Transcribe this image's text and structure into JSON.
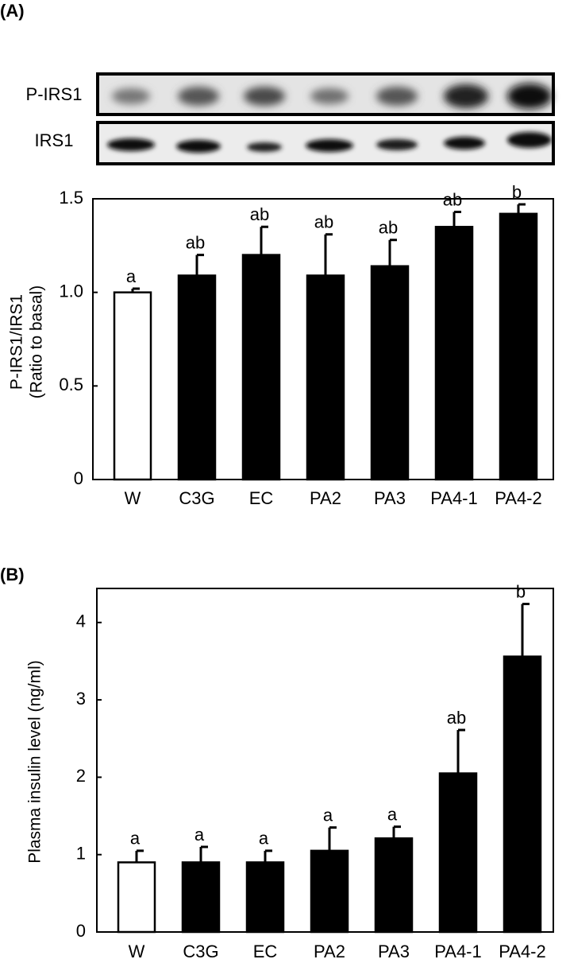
{
  "chart_data": [
    {
      "type": "bar",
      "panel_label": "(A)",
      "blot_labels": [
        "P-IRS1",
        "IRS1"
      ],
      "ylabel": [
        "P-IRS1/IRS1",
        "(Ratio to basal)"
      ],
      "categories": [
        "W",
        "C3G",
        "EC",
        "PA2",
        "PA3",
        "PA4-1",
        "PA4-2"
      ],
      "values": [
        1.0,
        1.09,
        1.2,
        1.09,
        1.14,
        1.35,
        1.42
      ],
      "errors": [
        0.02,
        0.11,
        0.15,
        0.22,
        0.14,
        0.08,
        0.05
      ],
      "significance": [
        "a",
        "ab",
        "ab",
        "ab",
        "ab",
        "ab",
        "b"
      ],
      "colors": [
        "#ffffff",
        "#000000",
        "#000000",
        "#000000",
        "#000000",
        "#000000",
        "#000000"
      ],
      "edge_color": "#000000",
      "ylim": [
        0,
        1.5
      ],
      "yticks": [
        0,
        0.5,
        {
          "value": 1,
          "label": "1.0"
        },
        1.5
      ]
    },
    {
      "type": "bar",
      "panel_label": "(B)",
      "ylabel": "Plasma insulin level (ng/ml)",
      "categories": [
        "W",
        "C3G",
        "EC",
        "PA2",
        "PA3",
        "PA4-1",
        "PA4-2"
      ],
      "values": [
        0.9,
        0.9,
        0.9,
        1.05,
        1.21,
        2.05,
        3.56
      ],
      "errors": [
        0.15,
        0.2,
        0.15,
        0.3,
        0.15,
        0.56,
        0.68
      ],
      "significance": [
        "a",
        "a",
        "a",
        "a",
        "a",
        "ab",
        "b"
      ],
      "colors": [
        "#ffffff",
        "#000000",
        "#000000",
        "#000000",
        "#000000",
        "#000000",
        "#000000"
      ],
      "edge_color": "#000000",
      "ylim": [
        0,
        4.44
      ],
      "yticks": [
        0,
        1,
        2,
        3,
        4
      ]
    }
  ]
}
